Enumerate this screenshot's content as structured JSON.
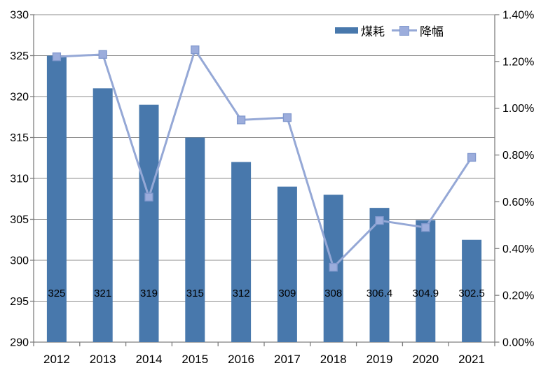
{
  "chart_data": {
    "type": "combo_bar_line",
    "title": "",
    "categories": [
      "2012",
      "2013",
      "2014",
      "2015",
      "2016",
      "2017",
      "2018",
      "2019",
      "2020",
      "2021"
    ],
    "series": [
      {
        "name": "煤耗",
        "type": "bar",
        "axis": "left",
        "values": [
          325,
          321,
          319,
          315,
          312,
          309,
          308,
          306.4,
          304.9,
          302.5
        ],
        "data_labels": [
          "325",
          "321",
          "319",
          "315",
          "312",
          "309",
          "308",
          "306.4",
          "304.9",
          "302.5"
        ],
        "color": "#4878AC"
      },
      {
        "name": "降幅",
        "type": "line",
        "axis": "right",
        "values_percent": [
          1.22,
          1.23,
          0.62,
          1.25,
          0.95,
          0.96,
          0.32,
          0.52,
          0.49,
          0.79
        ],
        "color": "#95A8D6",
        "marker": {
          "shape": "square",
          "fill": "#9CADDC",
          "stroke": "#8299CE"
        }
      }
    ],
    "left_axis": {
      "min": 290,
      "max": 330,
      "step": 5,
      "tick_labels": [
        "290",
        "295",
        "300",
        "305",
        "310",
        "315",
        "320",
        "325",
        "330"
      ]
    },
    "right_axis": {
      "min": 0,
      "max": 1.4,
      "step": 0.2,
      "tick_labels": [
        "0.00%",
        "0.20%",
        "0.40%",
        "0.60%",
        "0.80%",
        "1.00%",
        "1.20%",
        "1.40%"
      ]
    },
    "grid": true,
    "legend_position": "top-right"
  },
  "style": {
    "grid_color": "#8E8E8E",
    "axis_color": "#7F7F7F",
    "text_color": "#000000",
    "background": "#FFFFFF"
  }
}
